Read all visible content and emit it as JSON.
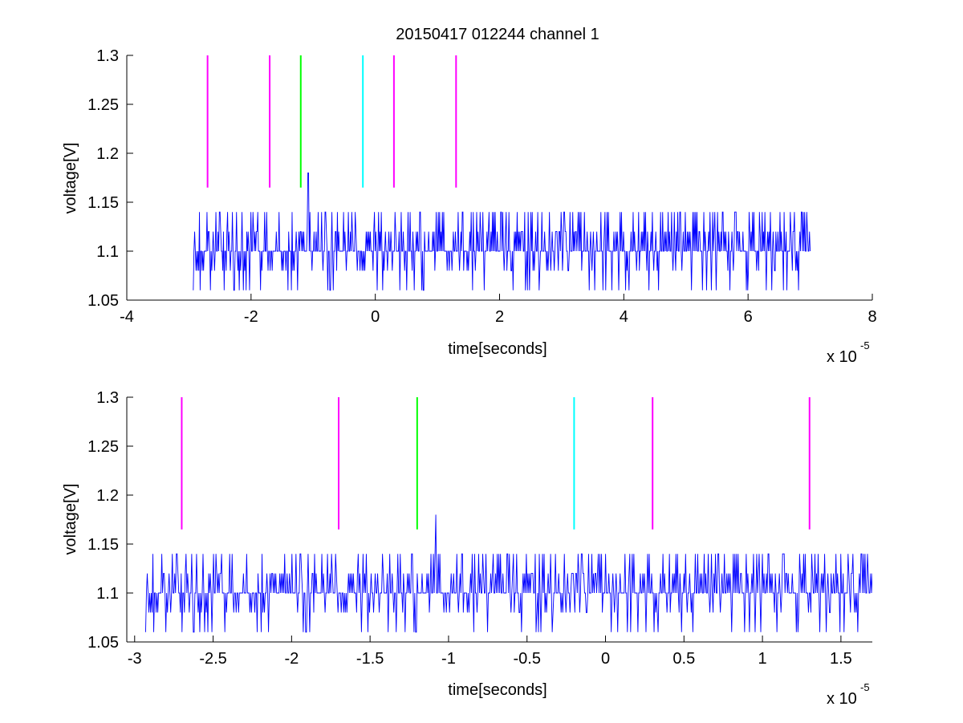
{
  "chart_data": [
    {
      "type": "line",
      "title": "20150417 012244 channel 1",
      "xlabel": "time[seconds]",
      "ylabel": "voltage[V]",
      "x_multiplier_label": "x 10",
      "x_multiplier_exponent": "-5",
      "xlim": [
        -4,
        8
      ],
      "ylim": [
        1.05,
        1.3
      ],
      "xticks": [
        -4,
        -2,
        0,
        2,
        4,
        6,
        8
      ],
      "xtick_labels": [
        "-4",
        "-2",
        "0",
        "2",
        "4",
        "6",
        "8"
      ],
      "yticks": [
        1.05,
        1.1,
        1.15,
        1.2,
        1.25,
        1.3
      ],
      "ytick_labels": [
        "1.05",
        "1.1",
        "1.15",
        "1.2",
        "1.25",
        "1.3"
      ],
      "grid": false,
      "series": [
        {
          "color": "#0000ff",
          "x_range": [
            -2.93,
            7.0
          ],
          "levels": [
            1.06,
            1.08,
            1.1,
            1.12,
            1.14
          ],
          "baseline": 1.1,
          "spike": {
            "x": -1.08,
            "y": 1.18
          }
        }
      ],
      "markers": [
        {
          "x": -2.7,
          "y_range": [
            1.165,
            1.3
          ],
          "color": "#ff00ff"
        },
        {
          "x": -1.7,
          "y_range": [
            1.165,
            1.3
          ],
          "color": "#ff00ff"
        },
        {
          "x": -1.2,
          "y_range": [
            1.165,
            1.3
          ],
          "color": "#00ff00"
        },
        {
          "x": -0.2,
          "y_range": [
            1.165,
            1.3
          ],
          "color": "#00ffff"
        },
        {
          "x": 0.3,
          "y_range": [
            1.165,
            1.3
          ],
          "color": "#ff00ff"
        },
        {
          "x": 1.3,
          "y_range": [
            1.165,
            1.3
          ],
          "color": "#ff00ff"
        }
      ]
    },
    {
      "type": "line",
      "title": "",
      "xlabel": "time[seconds]",
      "ylabel": "voltage[V]",
      "x_multiplier_label": "x 10",
      "x_multiplier_exponent": "-5",
      "xlim": [
        -3.05,
        1.7
      ],
      "ylim": [
        1.05,
        1.3
      ],
      "xticks": [
        -3,
        -2.5,
        -2,
        -1.5,
        -1,
        -0.5,
        0,
        0.5,
        1,
        1.5
      ],
      "xtick_labels": [
        "-3",
        "-2.5",
        "-2",
        "-1.5",
        "-1",
        "-0.5",
        "0",
        "0.5",
        "1",
        "1.5"
      ],
      "yticks": [
        1.05,
        1.1,
        1.15,
        1.2,
        1.25,
        1.3
      ],
      "ytick_labels": [
        "1.05",
        "1.1",
        "1.15",
        "1.2",
        "1.25",
        "1.3"
      ],
      "grid": false,
      "series": [
        {
          "color": "#0000ff",
          "x_range": [
            -2.93,
            1.7
          ],
          "levels": [
            1.06,
            1.08,
            1.1,
            1.12,
            1.14
          ],
          "baseline": 1.1,
          "spike": {
            "x": -1.08,
            "y": 1.18
          }
        }
      ],
      "markers": [
        {
          "x": -2.7,
          "y_range": [
            1.165,
            1.3
          ],
          "color": "#ff00ff"
        },
        {
          "x": -1.7,
          "y_range": [
            1.165,
            1.3
          ],
          "color": "#ff00ff"
        },
        {
          "x": -1.2,
          "y_range": [
            1.165,
            1.3
          ],
          "color": "#00ff00"
        },
        {
          "x": -0.2,
          "y_range": [
            1.165,
            1.3
          ],
          "color": "#00ffff"
        },
        {
          "x": 0.3,
          "y_range": [
            1.165,
            1.3
          ],
          "color": "#ff00ff"
        },
        {
          "x": 1.3,
          "y_range": [
            1.165,
            1.3
          ],
          "color": "#ff00ff"
        }
      ]
    }
  ]
}
